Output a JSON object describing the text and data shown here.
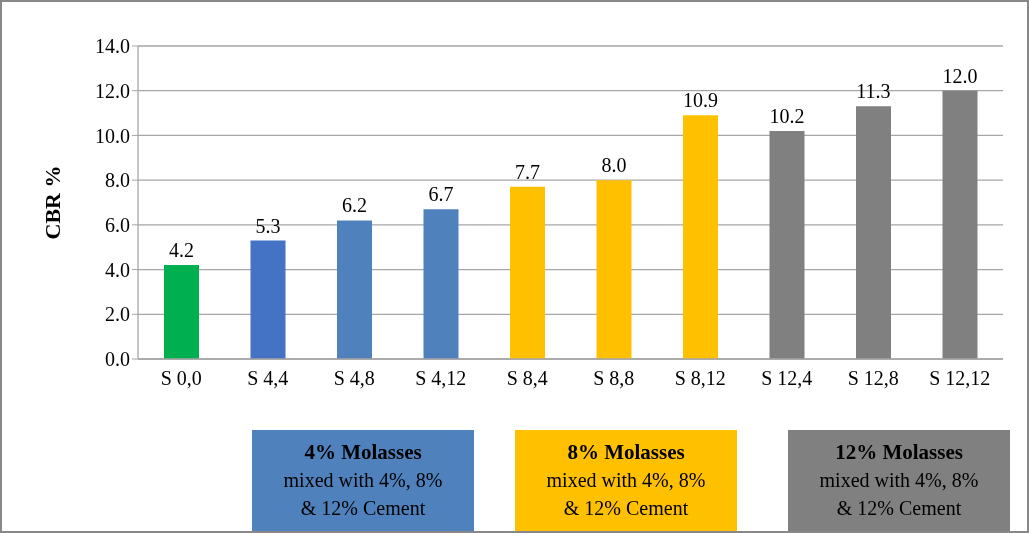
{
  "chart_data": {
    "type": "bar",
    "ylabel": "CBR  %",
    "categories": [
      "S 0,0",
      "S 4,4",
      "S 4,8",
      "S 4,12",
      "S 8,4",
      "S 8,8",
      "S 8,12",
      "S 12,4",
      "S 12,8",
      "S 12,12"
    ],
    "values": [
      4.2,
      5.3,
      6.2,
      6.7,
      7.7,
      8.0,
      10.9,
      10.2,
      11.3,
      12.0
    ],
    "colors": [
      "#00b050",
      "#4472c4",
      "#4f81bd",
      "#4f81bd",
      "#ffc000",
      "#ffc000",
      "#ffc000",
      "#808080",
      "#808080",
      "#808080"
    ],
    "ylim": [
      0,
      14
    ],
    "yticks": [
      {
        "value": 0,
        "label": "0.0"
      },
      {
        "value": 2,
        "label": "2.0"
      },
      {
        "value": 4,
        "label": "4.0"
      },
      {
        "value": 6,
        "label": "6.0"
      },
      {
        "value": 8,
        "label": "8.0"
      },
      {
        "value": 10,
        "label": "10.0"
      },
      {
        "value": 12,
        "label": "12.0"
      },
      {
        "value": 14,
        "label": "14.0"
      }
    ],
    "grid": "y",
    "value_labels": [
      "4.2",
      "5.3",
      "6.2",
      "6.7",
      "7.7",
      "8.0",
      "10.9",
      "10.2",
      "11.3",
      "12.0"
    ],
    "annotations": [
      "4% Molasses\nmixed with 4%, 8%\n& 12% Cement",
      "8% Molasses\nmixed with 4%, 8%\n& 12% Cement",
      "12% Molasses\nmixed with 4%, 8%\n& 12% Cement"
    ]
  }
}
